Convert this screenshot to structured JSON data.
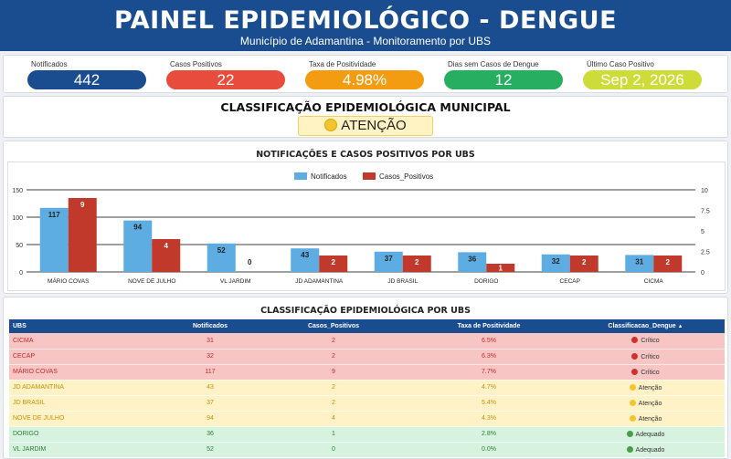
{
  "header": {
    "title": "PAINEL EPIDEMIOLÓGICO - DENGUE",
    "subtitle": "Município de Adamantina - Monitoramento por UBS"
  },
  "kpis": [
    {
      "label": "Notificados",
      "value": "442",
      "color": "#1a4d8f"
    },
    {
      "label": "Casos Positivos",
      "value": "22",
      "color": "#e74c3c"
    },
    {
      "label": "Taxa de Positividade",
      "value": "4.98%",
      "color": "#f39c12"
    },
    {
      "label": "Dias sem Casos de Dengue",
      "value": "12",
      "color": "#27ae60"
    },
    {
      "label": "Último Caso Positivo",
      "value": "Sep 2, 2026",
      "color": "#cddc39"
    }
  ],
  "classification": {
    "title": "CLASSIFICAÇÃO EPIDEMIOLÓGICA MUNICIPAL",
    "status": "ATENÇÃO",
    "status_icon": "yellow-circle-icon"
  },
  "chart": {
    "title": "NOTIFICAÇÕES E CASOS POSITIVOS POR UBS"
  },
  "chart_data": {
    "type": "bar",
    "categories": [
      "MÁRIO COVAS",
      "NOVE DE JULHO",
      "VL JARDIM",
      "JD ADAMANTINA",
      "JD BRASIL",
      "DORIGO",
      "CECAP",
      "CICMA"
    ],
    "series": [
      {
        "name": "Notificados",
        "values": [
          117,
          94,
          52,
          43,
          37,
          36,
          32,
          31
        ],
        "color": "#5dade2",
        "axis": "left"
      },
      {
        "name": "Casos_Positivos",
        "values": [
          9,
          4,
          0,
          2,
          2,
          1,
          2,
          2
        ],
        "color": "#c0392b",
        "axis": "right"
      }
    ],
    "left_axis": {
      "ticks": [
        "0",
        "50",
        "100",
        "150"
      ],
      "ylim": [
        0,
        150
      ]
    },
    "right_axis": {
      "ticks": [
        "0",
        "2.5",
        "5",
        "7.5",
        "10"
      ],
      "ylim": [
        0,
        10
      ]
    },
    "legend_position": "top-center",
    "grid": true
  },
  "table": {
    "title": "CLASSIFICAÇÃO EPIDEMIOLÓGICA POR UBS",
    "columns": [
      "UBS",
      "Notificados",
      "Casos_Positivos",
      "Taxa de Positividade",
      "Classificacao_Dengue"
    ],
    "sort_indicator": "▲",
    "rows": [
      {
        "ubs": "CICMA",
        "notificados": "31",
        "positivos": "2",
        "taxa": "6.5%",
        "status": "Crítico",
        "level": "critico"
      },
      {
        "ubs": "CECAP",
        "notificados": "32",
        "positivos": "2",
        "taxa": "6.3%",
        "status": "Crítico",
        "level": "critico"
      },
      {
        "ubs": "MÁRIO COVAS",
        "notificados": "117",
        "positivos": "9",
        "taxa": "7.7%",
        "status": "Crítico",
        "level": "critico"
      },
      {
        "ubs": "JD ADAMANTINA",
        "notificados": "43",
        "positivos": "2",
        "taxa": "4.7%",
        "status": "Atenção",
        "level": "atencao"
      },
      {
        "ubs": "JD BRASIL",
        "notificados": "37",
        "positivos": "2",
        "taxa": "5.4%",
        "status": "Atenção",
        "level": "atencao"
      },
      {
        "ubs": "NOVE DE JULHO",
        "notificados": "94",
        "positivos": "4",
        "taxa": "4.3%",
        "status": "Atenção",
        "level": "atencao"
      },
      {
        "ubs": "DORIGO",
        "notificados": "36",
        "positivos": "1",
        "taxa": "2.8%",
        "status": "Adequado",
        "level": "adequado"
      },
      {
        "ubs": "VL JARDIM",
        "notificados": "52",
        "positivos": "0",
        "taxa": "0.0%",
        "status": "Adequado",
        "level": "adequado"
      }
    ]
  }
}
